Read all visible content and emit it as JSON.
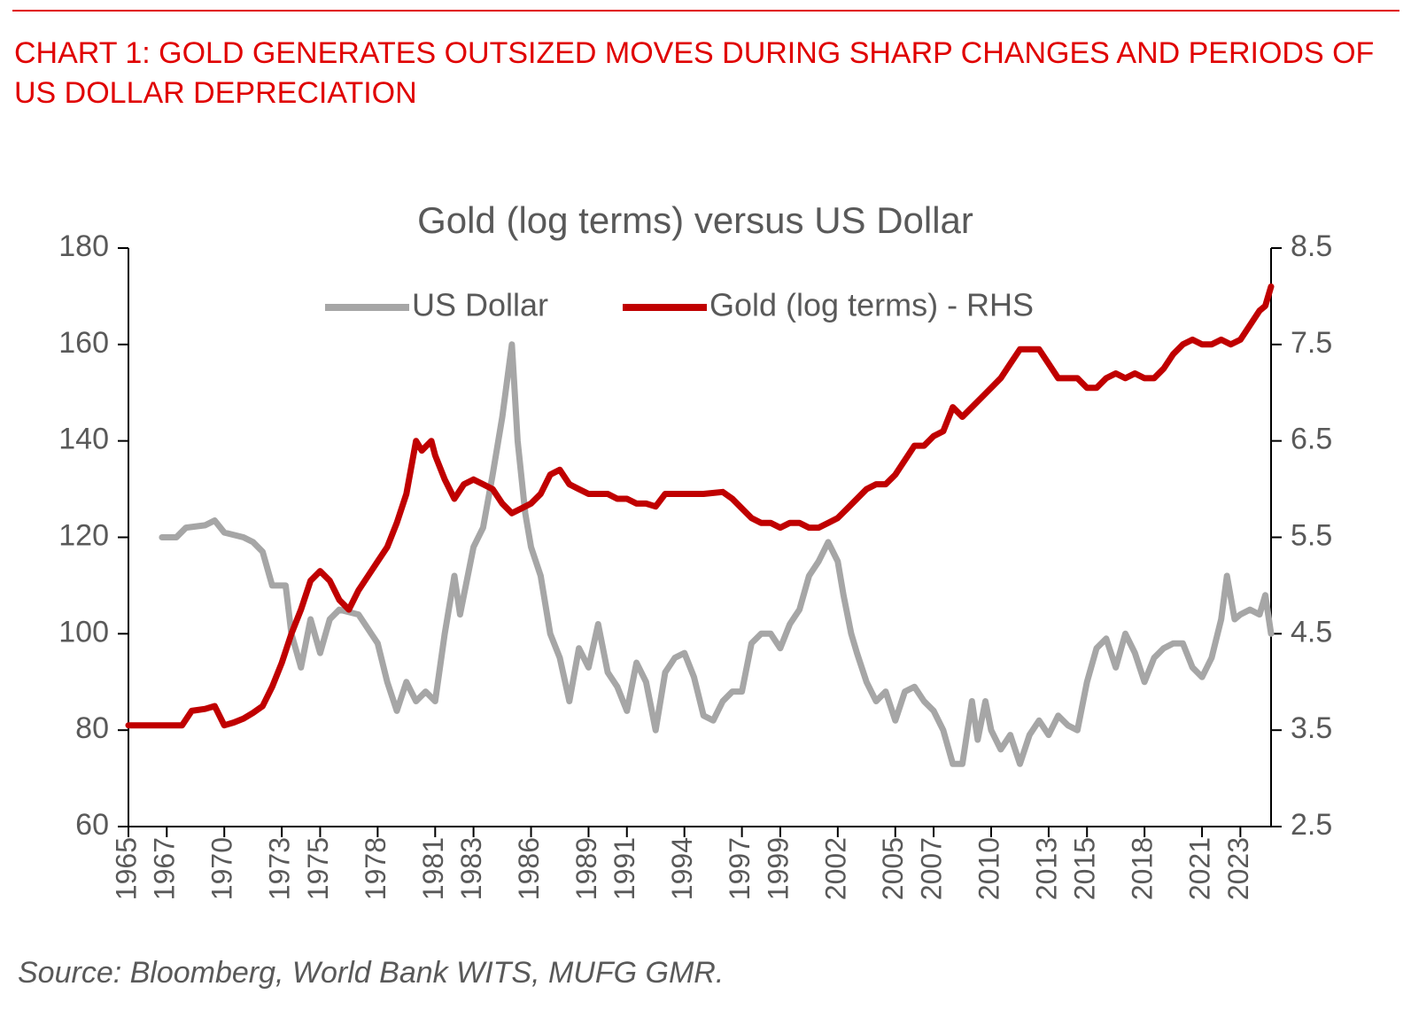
{
  "chart_data": {
    "type": "line",
    "header": "CHART 1: GOLD GENERATES OUTSIZED MOVES DURING SHARP CHANGES AND PERIODS OF US DOLLAR DEPRECIATION",
    "title": "Gold (log terms) versus US Dollar",
    "source": "Source: Bloomberg, World Bank WITS, MUFG GMR.",
    "xlim": [
      1965,
      2024.6
    ],
    "xticks": [
      1965,
      1967,
      1970,
      1973,
      1975,
      1978,
      1981,
      1983,
      1986,
      1989,
      1991,
      1994,
      1997,
      1999,
      2002,
      2005,
      2007,
      2010,
      2013,
      2015,
      2018,
      2021,
      2023
    ],
    "ylim": [
      60,
      180
    ],
    "yticks": [
      60,
      80,
      100,
      120,
      140,
      160,
      180
    ],
    "y2lim": [
      2.5,
      8.5
    ],
    "y2ticks": [
      2.5,
      3.5,
      4.5,
      5.5,
      6.5,
      7.5,
      8.5
    ],
    "grid": false,
    "legend": "top",
    "series": [
      {
        "name": "US Dollar",
        "color": "#a6a6a6",
        "axis": "y",
        "x": [
          1966.75,
          1967.5,
          1968,
          1969,
          1969.5,
          1970,
          1971,
          1971.5,
          1972,
          1972.5,
          1973.2,
          1973.5,
          1974,
          1974.5,
          1975,
          1975.5,
          1976,
          1977,
          1978,
          1978.5,
          1979,
          1979.5,
          1980,
          1980.5,
          1981,
          1981.5,
          1982,
          1982.3,
          1983,
          1983.5,
          1984,
          1984.5,
          1985,
          1985.3,
          1985.7,
          1986,
          1986.5,
          1987,
          1987.5,
          1988,
          1988.5,
          1989,
          1989.5,
          1990,
          1990.5,
          1991,
          1991.5,
          1992,
          1992.5,
          1993,
          1993.5,
          1994,
          1994.5,
          1995,
          1995.5,
          1996,
          1996.5,
          1997,
          1997.5,
          1998,
          1998.5,
          1999,
          1999.5,
          2000,
          2000.5,
          2001,
          2001.5,
          2002,
          2002.3,
          2002.7,
          2003,
          2003.5,
          2004,
          2004.5,
          2005,
          2005.5,
          2006,
          2006.5,
          2007,
          2007.5,
          2008,
          2008.5,
          2009,
          2009.3,
          2009.7,
          2010,
          2010.5,
          2011,
          2011.5,
          2012,
          2012.5,
          2013,
          2013.5,
          2014,
          2014.5,
          2015,
          2015.5,
          2016,
          2016.5,
          2017,
          2017.5,
          2018,
          2018.5,
          2019,
          2019.5,
          2020,
          2020.5,
          2021,
          2021.5,
          2022,
          2022.3,
          2022.7,
          2023,
          2023.5,
          2024,
          2024.3,
          2024.6
        ],
        "values": [
          120,
          120,
          122,
          122.5,
          123.5,
          121,
          120,
          119,
          117,
          110,
          110,
          100,
          93,
          103,
          96,
          103,
          105,
          104,
          98,
          90,
          84,
          90,
          86,
          88,
          86,
          100,
          112,
          104,
          118,
          122,
          133,
          145,
          160,
          140,
          125,
          118,
          112,
          100,
          95,
          86,
          97,
          93,
          102,
          92,
          89,
          84,
          94,
          90,
          80,
          92,
          95,
          96,
          91,
          83,
          82,
          86,
          88,
          88,
          98,
          100,
          100,
          97,
          102,
          105,
          112,
          115,
          119,
          115,
          108,
          100,
          96,
          90,
          86,
          88,
          82,
          88,
          89,
          86,
          84,
          80,
          73,
          73,
          86,
          78,
          86,
          80,
          76,
          79,
          73,
          79,
          82,
          79,
          83,
          81,
          80,
          90,
          97,
          99,
          93,
          100,
          96,
          90,
          95,
          97,
          98,
          98,
          93,
          91,
          95,
          103,
          112,
          103,
          104,
          105,
          104,
          108,
          100
        ]
      },
      {
        "name": "Gold (log terms) - RHS",
        "color": "#c00000",
        "axis": "y2",
        "x": [
          1965,
          1966,
          1967,
          1967.8,
          1968.3,
          1969,
          1969.5,
          1970,
          1970.5,
          1971,
          1971.5,
          1972,
          1972.5,
          1973,
          1973.5,
          1974,
          1974.5,
          1975,
          1975.5,
          1976,
          1976.5,
          1977,
          1977.5,
          1978,
          1978.5,
          1979,
          1979.5,
          1980,
          1980.3,
          1980.8,
          1981,
          1981.5,
          1982,
          1982.5,
          1983,
          1983.5,
          1984,
          1984.5,
          1985,
          1985.5,
          1986,
          1986.5,
          1987,
          1987.5,
          1988,
          1988.5,
          1989,
          1989.5,
          1990,
          1990.5,
          1991,
          1991.5,
          1992,
          1992.5,
          1993,
          1993.5,
          1994,
          1995,
          1996,
          1996.5,
          1997,
          1997.5,
          1998,
          1998.5,
          1999,
          1999.5,
          2000,
          2000.5,
          2001,
          2001.5,
          2002,
          2002.5,
          2003,
          2003.5,
          2004,
          2004.5,
          2005,
          2005.5,
          2006,
          2006.5,
          2007,
          2007.5,
          2008,
          2008.5,
          2009,
          2009.5,
          2010,
          2010.5,
          2011,
          2011.5,
          2012,
          2012.5,
          2013,
          2013.5,
          2014,
          2014.5,
          2015,
          2015.5,
          2016,
          2016.5,
          2017,
          2017.5,
          2018,
          2018.5,
          2019,
          2019.5,
          2020,
          2020.5,
          2021,
          2021.5,
          2022,
          2022.5,
          2023,
          2023.5,
          2024,
          2024.3,
          2024.6
        ],
        "values": [
          3.55,
          3.55,
          3.55,
          3.55,
          3.7,
          3.72,
          3.75,
          3.55,
          3.58,
          3.62,
          3.68,
          3.75,
          3.95,
          4.2,
          4.5,
          4.75,
          5.05,
          5.15,
          5.05,
          4.85,
          4.75,
          4.95,
          5.1,
          5.25,
          5.4,
          5.65,
          5.95,
          6.5,
          6.4,
          6.5,
          6.35,
          6.1,
          5.9,
          6.05,
          6.1,
          6.05,
          6.0,
          5.85,
          5.75,
          5.8,
          5.85,
          5.95,
          6.15,
          6.2,
          6.05,
          6.0,
          5.95,
          5.95,
          5.95,
          5.9,
          5.9,
          5.85,
          5.85,
          5.82,
          5.95,
          5.95,
          5.95,
          5.95,
          5.97,
          5.9,
          5.8,
          5.7,
          5.65,
          5.65,
          5.6,
          5.65,
          5.65,
          5.6,
          5.6,
          5.65,
          5.7,
          5.8,
          5.9,
          6.0,
          6.05,
          6.05,
          6.15,
          6.3,
          6.45,
          6.45,
          6.55,
          6.6,
          6.85,
          6.75,
          6.85,
          6.95,
          7.05,
          7.15,
          7.3,
          7.45,
          7.45,
          7.45,
          7.3,
          7.15,
          7.15,
          7.15,
          7.05,
          7.05,
          7.15,
          7.2,
          7.15,
          7.2,
          7.15,
          7.15,
          7.25,
          7.4,
          7.5,
          7.55,
          7.5,
          7.5,
          7.55,
          7.5,
          7.55,
          7.7,
          7.85,
          7.9,
          8.1
        ]
      }
    ]
  }
}
